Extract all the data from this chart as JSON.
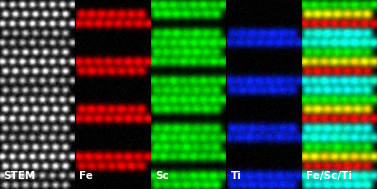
{
  "panels": [
    {
      "label": "STEM",
      "label_color": "white"
    },
    {
      "label": "Fe",
      "label_color": "white"
    },
    {
      "label": "Sc",
      "label_color": "white"
    },
    {
      "label": "Ti",
      "label_color": "white"
    },
    {
      "label": "Fe/Sc/Ti",
      "label_color": "white"
    }
  ],
  "fig_width": 3.77,
  "fig_height": 1.89,
  "dpi": 100,
  "label_fontsize": 7.5,
  "background": "black"
}
